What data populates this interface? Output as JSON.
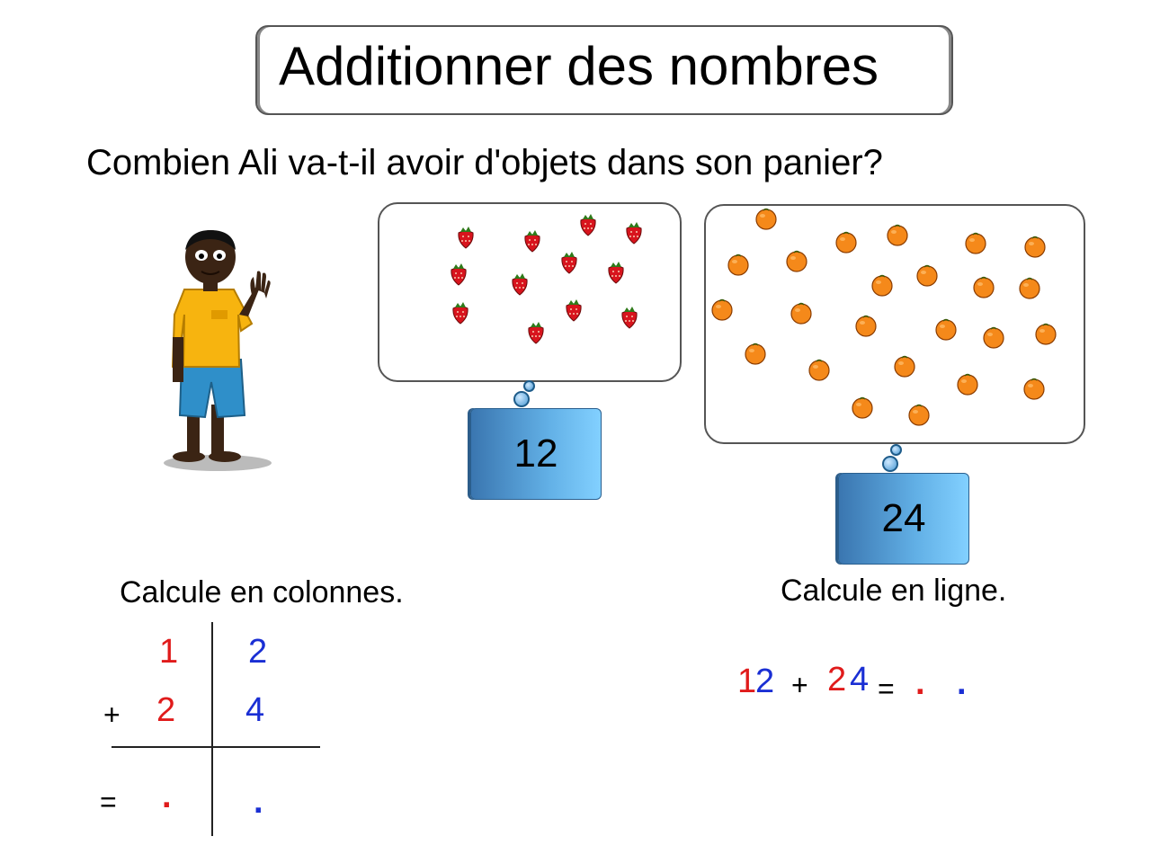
{
  "title": "Additionner des nombres",
  "question": "Combien Ali va-t-il avoir d'objets dans son panier?",
  "bubbles": {
    "strawberries": {
      "count_label": "12"
    },
    "oranges": {
      "count_label": "24"
    }
  },
  "column_calc": {
    "label": "Calcule en colonnes.",
    "row1": {
      "tens": "1",
      "units": "2"
    },
    "row2": {
      "op": "+",
      "tens": "2",
      "units": "4"
    },
    "result": {
      "eq": "=",
      "tens": ".",
      "units": "."
    }
  },
  "line_calc": {
    "label": "Calcule en ligne.",
    "a_tens": "1",
    "a_units": "2",
    "op": "+",
    "b_tens": "2",
    "b_units": "4",
    "eq": "=",
    "r_tens": ".",
    "r_units": "."
  },
  "colors": {
    "tens": "#e01b1b",
    "units": "#1a2fd4",
    "box": "#4a90d0"
  },
  "icons": {
    "character": "boy-waving",
    "strawberry": "strawberry-icon",
    "orange": "orange-icon"
  }
}
